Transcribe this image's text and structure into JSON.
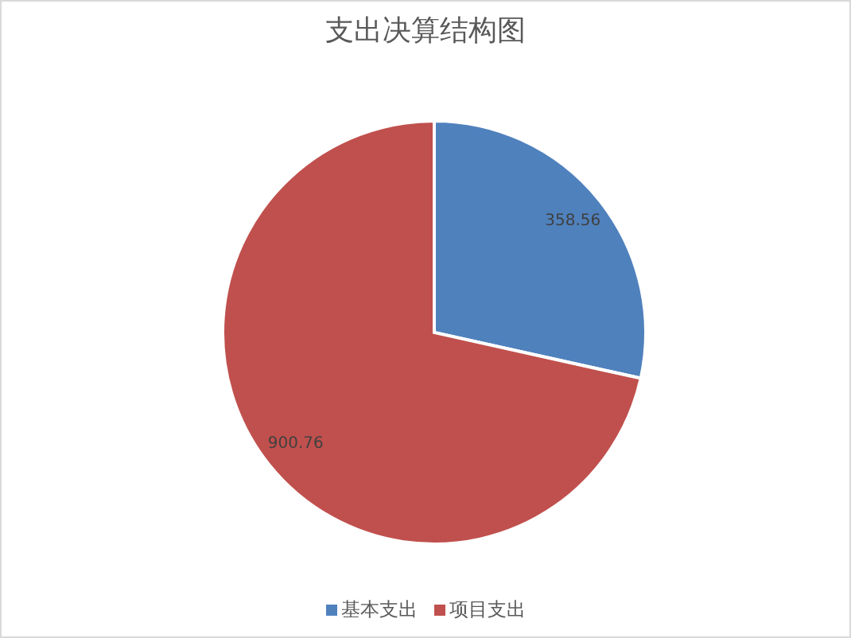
{
  "chart_data": {
    "type": "pie",
    "title": "支出决算结构图",
    "categories": [
      "基本支出",
      "项目支出"
    ],
    "values": [
      358.56,
      900.76
    ],
    "colors": [
      "#4f81bd",
      "#c0504d"
    ],
    "data_labels": true,
    "legend": "bottom"
  }
}
